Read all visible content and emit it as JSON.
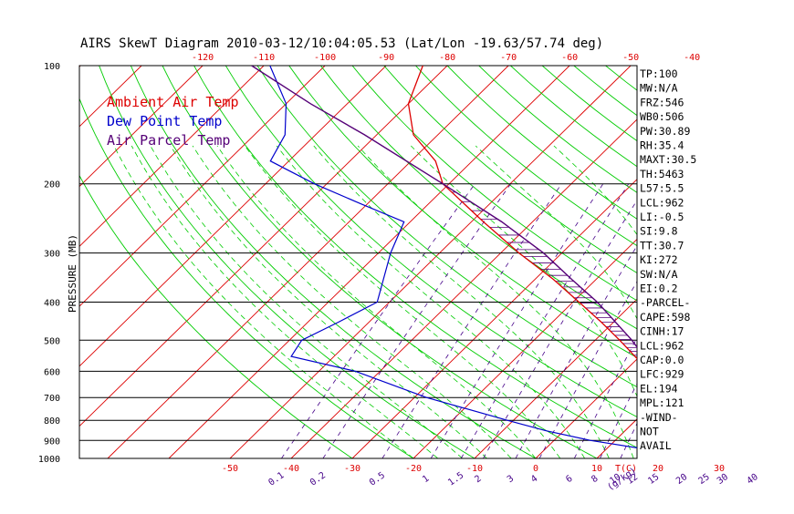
{
  "title": "AIRS SkewT Diagram 2010-03-12/10:04:05.53 (Lat/Lon -19.63/57.74 deg)",
  "colors": {
    "temp": "#dd0000",
    "dew": "#0000cc",
    "parcel": "#550077",
    "dry": "#dd0000",
    "moist": "#00cc00",
    "mix": "#440088",
    "frame": "#000000"
  },
  "chart_data": {
    "type": "skew-t",
    "ylabel": "PRESSURE (MB)",
    "pressure_ticks": [
      "100",
      "200",
      "300",
      "400",
      "500",
      "600",
      "700",
      "800",
      "900",
      "1000"
    ],
    "pressure_levels": [
      100,
      200,
      300,
      400,
      500,
      600,
      700,
      800,
      900,
      1000
    ],
    "top_temp_ticks": [
      "-120",
      "-110",
      "-100",
      "-90",
      "-80",
      "-70",
      "-60",
      "-50",
      "-40"
    ],
    "bottom_temp_ticks": [
      "-50",
      "-40",
      "-30",
      "-20",
      "-10",
      "0",
      "10",
      "20",
      "30",
      "T(C)"
    ],
    "mixing_ratio_ticks": [
      "0.1",
      "0.2",
      "0.5",
      "1",
      "1.5",
      "2",
      "3",
      "4",
      "6",
      "8",
      "10",
      "12",
      "15",
      "20",
      "25",
      "30",
      "40",
      "(g/kg)"
    ],
    "legend": [
      "Ambient Air Temp",
      "Dew Point Temp",
      "Air Parcel Temp"
    ],
    "temperature_profile": [
      [
        1000,
        26
      ],
      [
        950,
        22
      ],
      [
        900,
        19
      ],
      [
        850,
        18
      ],
      [
        800,
        17
      ],
      [
        700,
        12
      ],
      [
        600,
        4
      ],
      [
        500,
        -6
      ],
      [
        450,
        -12
      ],
      [
        400,
        -19
      ],
      [
        350,
        -27
      ],
      [
        300,
        -37
      ],
      [
        250,
        -48
      ],
      [
        200,
        -61
      ],
      [
        175,
        -66
      ],
      [
        150,
        -74
      ],
      [
        125,
        -80
      ],
      [
        100,
        -84
      ]
    ],
    "dewpoint_profile": [
      [
        1000,
        19
      ],
      [
        950,
        17
      ],
      [
        900,
        6
      ],
      [
        850,
        -3
      ],
      [
        800,
        -11
      ],
      [
        700,
        -28
      ],
      [
        600,
        -44
      ],
      [
        550,
        -57
      ],
      [
        500,
        -58
      ],
      [
        450,
        -55
      ],
      [
        400,
        -52
      ],
      [
        300,
        -58
      ],
      [
        250,
        -61
      ],
      [
        225,
        -71
      ],
      [
        200,
        -82
      ],
      [
        175,
        -93
      ],
      [
        150,
        -95
      ],
      [
        125,
        -100
      ],
      [
        100,
        -109
      ]
    ],
    "parcel_profile": [
      [
        1000,
        21
      ],
      [
        962,
        19
      ],
      [
        900,
        17.6
      ],
      [
        850,
        17.1
      ],
      [
        800,
        16.5
      ],
      [
        700,
        12
      ],
      [
        600,
        5
      ],
      [
        500,
        -4
      ],
      [
        400,
        -16
      ],
      [
        350,
        -24
      ],
      [
        300,
        -33
      ],
      [
        250,
        -45
      ],
      [
        200,
        -61
      ],
      [
        150,
        -82
      ],
      [
        125,
        -96
      ],
      [
        100,
        -112
      ]
    ],
    "indices": [
      "TP:100",
      "MW:N/A",
      "FRZ:546",
      "WB0:506",
      "PW:30.89",
      "RH:35.4",
      "MAXT:30.5",
      "TH:5463",
      "L57:5.5",
      "LCL:962",
      "LI:-0.5",
      "SI:9.8",
      "TT:30.7",
      "KI:272",
      "SW:N/A",
      "EI:0.2",
      "-PARCEL-",
      "CAPE:598",
      "CINH:17",
      "LCL:962",
      "CAP:0.0",
      "LFC:929",
      "EL:194",
      "MPL:121",
      "-WIND-",
      "NOT",
      "AVAIL"
    ]
  }
}
